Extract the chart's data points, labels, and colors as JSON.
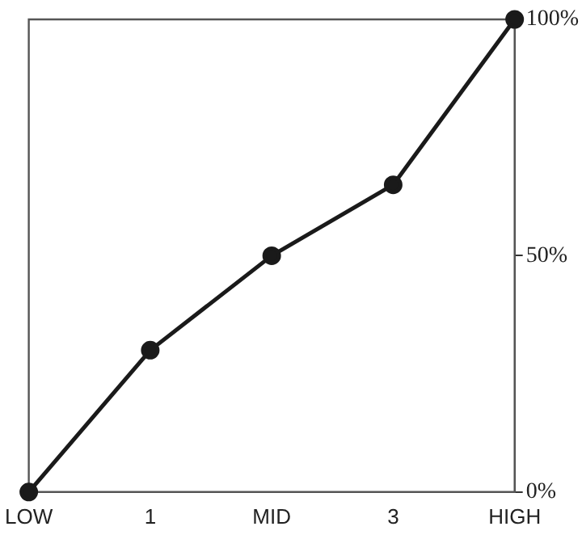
{
  "chart_data": {
    "type": "line",
    "categories": [
      "LOW",
      "1",
      "MID",
      "3",
      "HIGH"
    ],
    "series": [
      {
        "color": "#1a1a1a",
        "values": [
          0,
          30,
          50,
          65,
          100
        ]
      }
    ],
    "ylim": [
      0,
      100
    ],
    "yticks": [
      {
        "value": 0,
        "label": "0%"
      },
      {
        "value": 50,
        "label": "50%"
      },
      {
        "value": 100,
        "label": "100%"
      }
    ],
    "grid": false,
    "legend": false,
    "marker": "circle",
    "line_style": "solid"
  }
}
